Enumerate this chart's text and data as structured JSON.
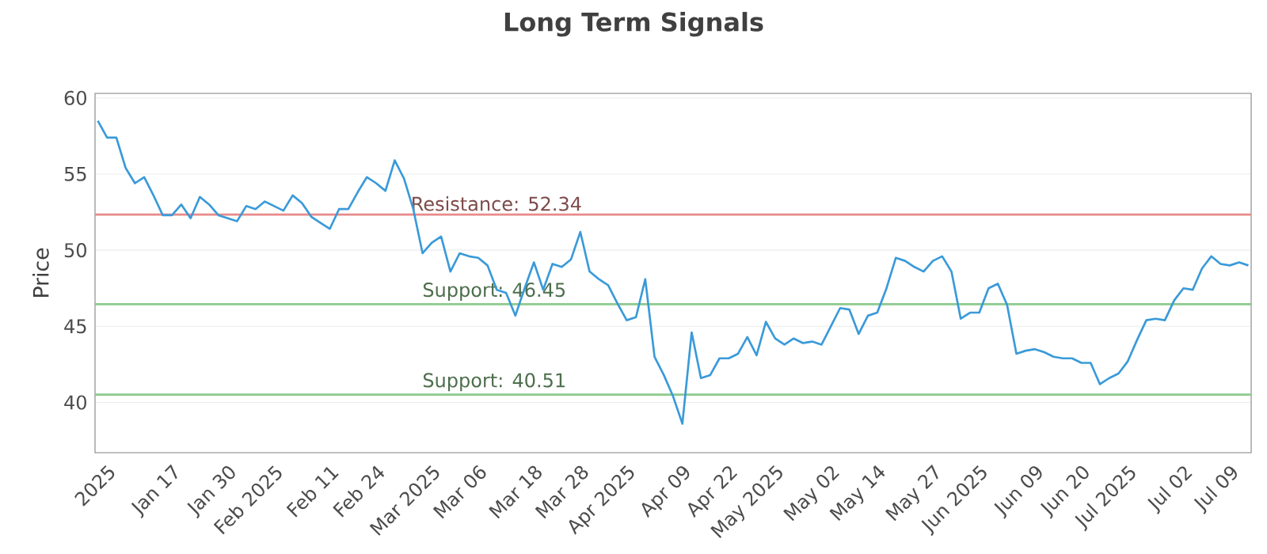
{
  "chart_data": {
    "type": "line",
    "title": "Long Term Signals",
    "ylabel": "Price",
    "categories": [
      null,
      "2025",
      null,
      null,
      null,
      null,
      null,
      null,
      "Jan 17",
      null,
      null,
      null,
      null,
      null,
      "Jan 30",
      null,
      null,
      null,
      null,
      "Feb 2025",
      null,
      null,
      null,
      null,
      null,
      "Feb 11",
      null,
      null,
      null,
      null,
      "Feb 24",
      null,
      null,
      null,
      null,
      null,
      "Mar 2025",
      null,
      null,
      null,
      null,
      "Mar 06",
      null,
      null,
      null,
      null,
      null,
      "Mar 18",
      null,
      null,
      null,
      null,
      "Mar 28",
      null,
      null,
      null,
      null,
      "Apr 2025",
      null,
      null,
      null,
      null,
      null,
      "Apr 09",
      null,
      null,
      null,
      null,
      "Apr 22",
      null,
      null,
      null,
      null,
      "May 2025",
      null,
      null,
      null,
      null,
      null,
      "May 02",
      null,
      null,
      null,
      null,
      "May 14",
      null,
      null,
      null,
      null,
      null,
      "May 27",
      null,
      null,
      null,
      null,
      "Jun 2025",
      null,
      null,
      null,
      null,
      null,
      "Jun 09",
      null,
      null,
      null,
      null,
      "Jun 20",
      null,
      null,
      null,
      null,
      "Jul 2025",
      null,
      null,
      null,
      null,
      null,
      "Jul 02",
      null,
      null,
      null,
      null,
      "Jul 09",
      null,
      null
    ],
    "series": [
      {
        "color": "#3a9ad9",
        "values": [
          58.5,
          57.4,
          57.4,
          55.4,
          54.4,
          54.8,
          53.6,
          52.3,
          52.3,
          53.0,
          52.1,
          53.5,
          53.0,
          52.3,
          52.1,
          51.9,
          52.9,
          52.7,
          53.2,
          52.9,
          52.6,
          53.6,
          53.1,
          52.2,
          51.8,
          51.4,
          52.7,
          52.7,
          53.8,
          54.8,
          54.4,
          53.9,
          55.9,
          54.7,
          52.7,
          49.8,
          50.5,
          50.9,
          48.6,
          49.8,
          49.6,
          49.5,
          49.0,
          47.4,
          47.2,
          45.7,
          47.5,
          49.2,
          47.4,
          49.1,
          48.9,
          49.4,
          51.2,
          48.6,
          48.1,
          47.7,
          46.5,
          45.4,
          45.6,
          48.1,
          43.0,
          41.8,
          40.4,
          38.6,
          44.6,
          41.6,
          41.8,
          42.9,
          42.9,
          43.2,
          44.3,
          43.1,
          45.3,
          44.2,
          43.8,
          44.2,
          43.9,
          44.0,
          43.8,
          45.0,
          46.2,
          46.1,
          44.5,
          45.7,
          45.9,
          47.5,
          49.5,
          49.3,
          48.9,
          48.6,
          49.3,
          49.6,
          48.6,
          45.5,
          45.9,
          45.9,
          47.5,
          47.8,
          46.4,
          43.2,
          43.4,
          43.5,
          43.3,
          43.0,
          42.9,
          42.9,
          42.6,
          42.6,
          41.2,
          41.6,
          41.9,
          42.7,
          44.1,
          45.4,
          45.5,
          45.4,
          46.7,
          47.5,
          47.4,
          48.8,
          49.6,
          49.1,
          49.0,
          49.2,
          49.0
        ]
      }
    ],
    "ylim": [
      36.7,
      60.3
    ],
    "yticks": [
      40,
      45,
      50,
      55,
      60
    ],
    "grid": "y",
    "marker": "none",
    "line_style": "solid",
    "ref_lines": [
      {
        "axis": "y",
        "value": 52.34,
        "label": "Resistance: 52.34",
        "color": "#e88a8a"
      },
      {
        "axis": "y",
        "value": 46.45,
        "label": "Support: 46.45",
        "color": "#8cc98c"
      },
      {
        "axis": "y",
        "value": 40.51,
        "label": "Support: 40.51",
        "color": "#8cc98c"
      }
    ]
  }
}
